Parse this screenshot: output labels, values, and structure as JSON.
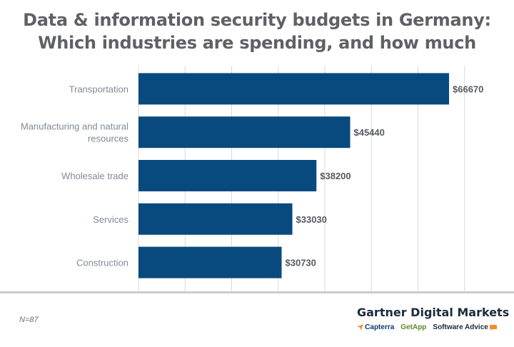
{
  "header": {
    "title_line1": "Data & information security budgets in Germany:",
    "title_line2": "Which industries are spending, and how much"
  },
  "colors": {
    "bar": "#084a7e",
    "grid": "#d7d9db",
    "label": "#7f8a96",
    "value": "#555b61",
    "title": "#5f6165"
  },
  "chart_data": {
    "type": "bar",
    "orientation": "horizontal",
    "categories": [
      "Transportation",
      "Manufacturing and natural resources",
      "Wholesale trade",
      "Services",
      "Construction"
    ],
    "category_lines": [
      [
        "Transportation"
      ],
      [
        "Manufacturing and natural",
        "resources"
      ],
      [
        "Wholesale trade"
      ],
      [
        "Services"
      ],
      [
        "Construction"
      ]
    ],
    "values": [
      66670,
      45440,
      38200,
      33030,
      30730
    ],
    "value_labels": [
      "$66670",
      "$45440",
      "$38200",
      "$33030",
      "$30730"
    ],
    "xlim": [
      0,
      80000
    ],
    "grid": true,
    "legend": "none"
  },
  "footer": {
    "note": "N=87",
    "brand": "Gartner Digital Markets",
    "sub_brands": [
      "Capterra",
      "GetApp",
      "Software Advice"
    ]
  }
}
